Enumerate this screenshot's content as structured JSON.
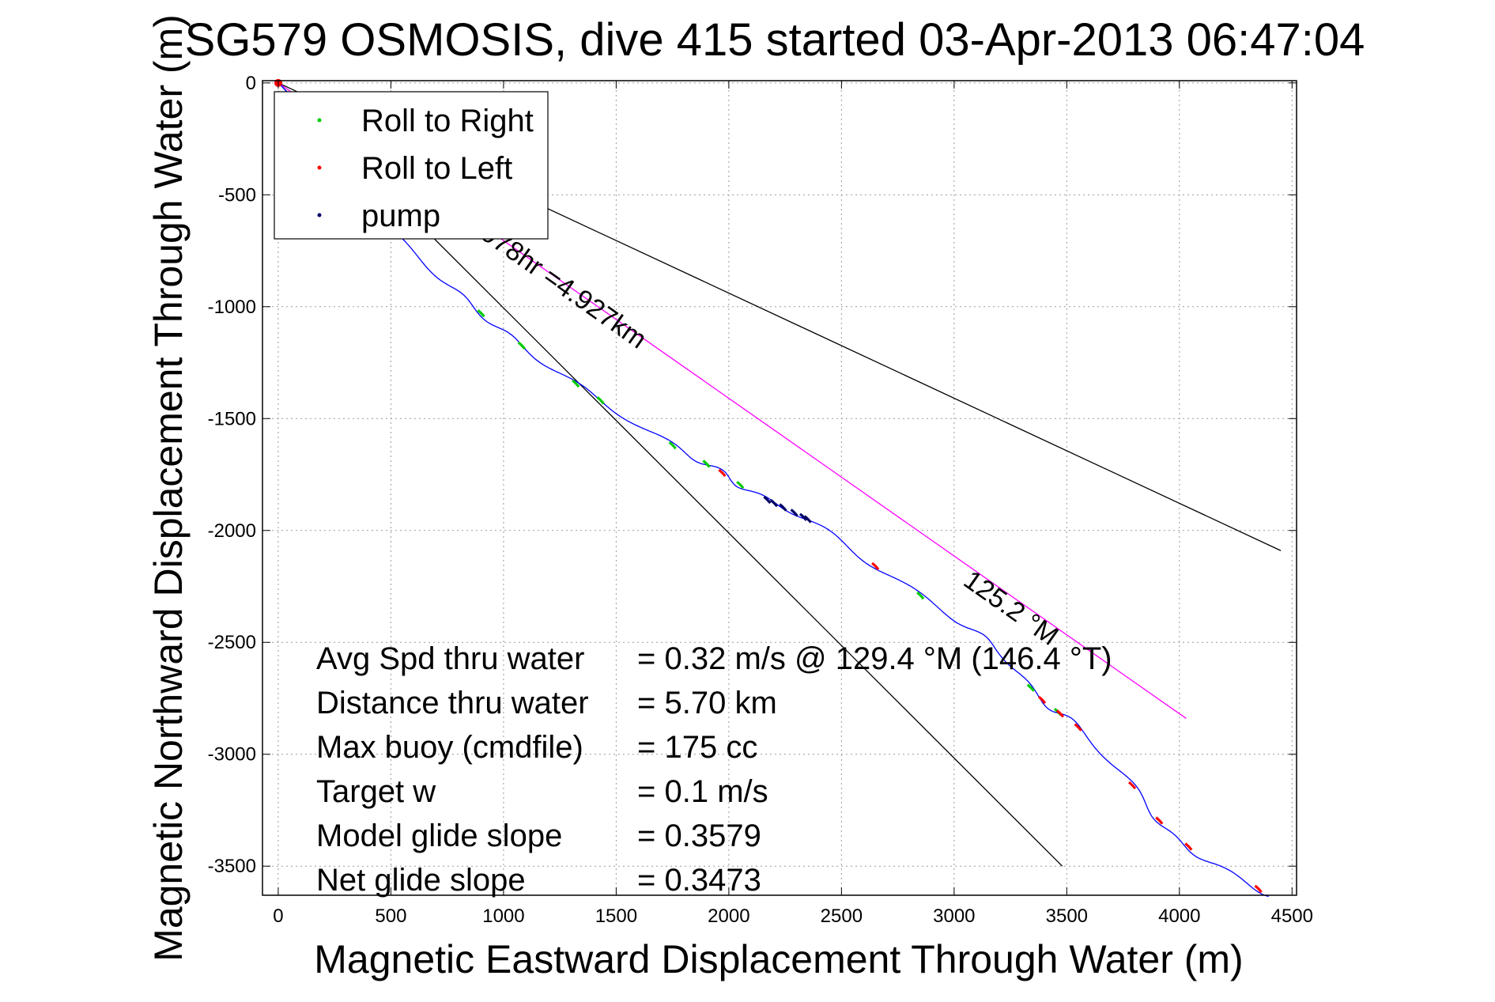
{
  "chart_data": {
    "type": "line",
    "title": "SG579 OSMOSIS, dive 415 started 03-Apr-2013 06:47:04",
    "xlabel": "Magnetic Eastward Displacement Through Water (m)",
    "ylabel": "Magnetic Northward Displacement Through Water (m)",
    "xlim": [
      -70,
      4520
    ],
    "ylim": [
      -3630,
      10
    ],
    "xticks": [
      0,
      500,
      1000,
      1500,
      2000,
      2500,
      3000,
      3500,
      4000,
      4500
    ],
    "yticks": [
      0,
      -500,
      -1000,
      -1500,
      -2000,
      -2500,
      -3000,
      -3500
    ],
    "grid": true,
    "legend": {
      "placement": "top-left",
      "entries": [
        {
          "label": "Roll to Right",
          "color": "#00cc00"
        },
        {
          "label": "Roll to Left",
          "color": "#ff0000"
        },
        {
          "label": "pump",
          "color": "#000066"
        }
      ]
    },
    "track": {
      "name": "glider track",
      "color": "#0000ff",
      "x": [
        0,
        400,
        700,
        900,
        1100,
        1400,
        1750,
        1950,
        2100,
        2350,
        2650,
        3000,
        3200,
        3380,
        3550,
        3800,
        3950,
        4150,
        4400
      ],
      "y": [
        0,
        -550,
        -850,
        -1030,
        -1190,
        -1400,
        -1620,
        -1730,
        -1830,
        -1950,
        -2160,
        -2390,
        -2540,
        -2750,
        -2880,
        -3150,
        -3350,
        -3490,
        -3630
      ]
    },
    "course_line": {
      "color": "#ff00ff",
      "x": [
        0,
        4030
      ],
      "y": [
        0,
        -2840
      ]
    },
    "bound_lines": [
      {
        "color": "#000000",
        "x": [
          0,
          4450
        ],
        "y": [
          0,
          -2090
        ]
      },
      {
        "color": "#000000",
        "x": [
          0,
          3480
        ],
        "y": [
          0,
          -3500
        ]
      }
    ],
    "roll_right_x": [
      900,
      1080,
      1320,
      1430,
      1750,
      1900,
      2050,
      2850,
      3340,
      3460
    ],
    "roll_left_x": [
      1970,
      2650,
      3390,
      3470,
      3550,
      3790,
      3910,
      4040,
      4350
    ],
    "pump_x": [
      2170,
      2200,
      2240,
      2290,
      2330,
      2350
    ],
    "annotations": {
      "course_label": "for4.8978hr =4.927km",
      "heading_label": "125.2 °M"
    },
    "stats": [
      {
        "label": "Avg Spd thru water",
        "value": "=  0.32 m/s @ 129.4 °M (146.4 °T)"
      },
      {
        "label": "Distance thru water",
        "value": "=  5.70 km"
      },
      {
        "label": "Max buoy (cmdfile)",
        "value": "= 175 cc"
      },
      {
        "label": "Target w",
        "value": "= 0.1 m/s"
      },
      {
        "label": "Model glide slope",
        "value": "= 0.3579"
      },
      {
        "label": "Net glide slope",
        "value": "= 0.3473"
      }
    ]
  }
}
